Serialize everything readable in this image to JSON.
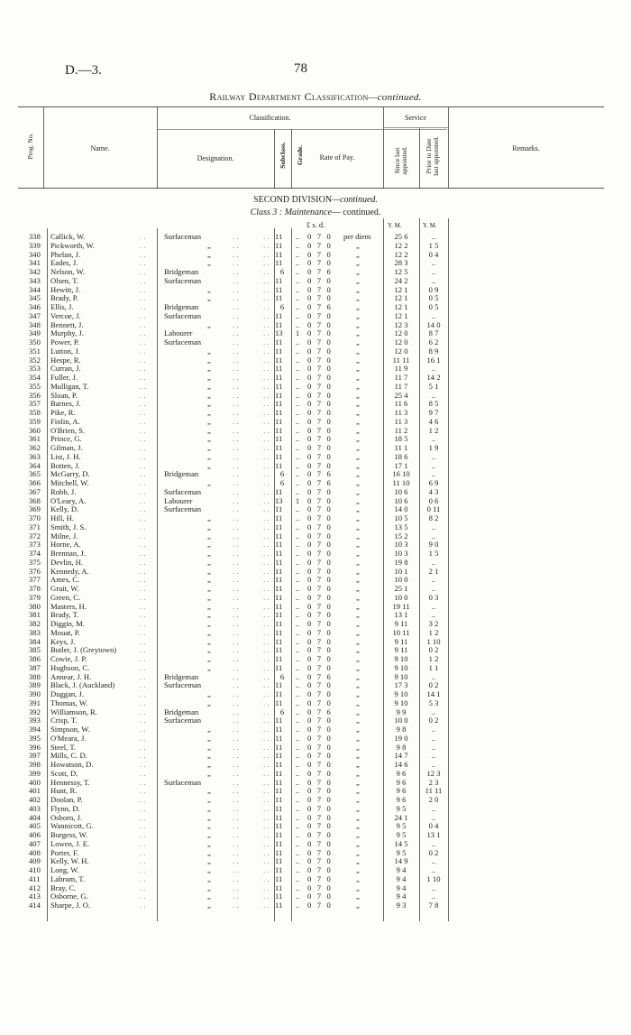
{
  "page_ref": "D.—3.",
  "page_number": "78",
  "title": {
    "main": "Railway Department Classification",
    "suffix": "—continued."
  },
  "headers": {
    "prog_no": "Prog. No.",
    "name": "Name.",
    "classification": "Classification.",
    "designation": "Designation.",
    "subclass": "Subclass.",
    "grade": "Grade.",
    "rate_of_pay": "Rate of Pay.",
    "service": "Service",
    "since_last": "Since last appointed.",
    "prior_to_date": "Prior to Date last appointed.",
    "remarks": "Remarks."
  },
  "division": {
    "title": "SECOND DIVISION",
    "title_suffix": "—continued.",
    "class_prefix": "Class 3 : ",
    "class_name": "Maintenance",
    "class_suffix": "— continued."
  },
  "units": {
    "pay": "£  s.  d.",
    "since": "Y.  M.",
    "prior": "Y.  M."
  },
  "per_diem": "per diem",
  "ditto": "„",
  "rows": [
    [
      "338",
      "Callick, W.",
      "Surfaceman",
      "11",
      "..",
      "0 7 0",
      "25 6",
      ".."
    ],
    [
      "339",
      "Pickworth, W.",
      "„",
      "11",
      "..",
      "0 7 0",
      "12 2",
      "1 5"
    ],
    [
      "340",
      "Phelan, J.",
      "„",
      "11",
      "..",
      "0 7 0",
      "12 2",
      "0 4"
    ],
    [
      "341",
      "Eades, J.",
      "„",
      "11",
      "..",
      "0 7 0",
      "28 3",
      ".."
    ],
    [
      "342",
      "Nelson, W.",
      "Bridgeman",
      "6",
      "..",
      "0 7 6",
      "12 5",
      ".."
    ],
    [
      "343",
      "Olsen, T.",
      "Surfaceman",
      "11",
      "..",
      "0 7 0",
      "24 2",
      ".."
    ],
    [
      "344",
      "Hewitt, J.",
      "„",
      "11",
      "..",
      "0 7 0",
      "12 1",
      "0 9"
    ],
    [
      "345",
      "Brady, P.",
      "„",
      "11",
      "..",
      "0 7 0",
      "12 1",
      "0 5"
    ],
    [
      "346",
      "Ellis, J.",
      "Bridgeman",
      "6",
      "..",
      "0 7 6",
      "12 1",
      "0 5"
    ],
    [
      "347",
      "Vercoe, J.",
      "Surfaceman",
      "11",
      "..",
      "0 7 0",
      "12 1",
      ".."
    ],
    [
      "348",
      "Bennett, J.",
      "„",
      "11",
      "..",
      "0 7 0",
      "12 3",
      "14 0"
    ],
    [
      "349",
      "Murphy, J.",
      "Labourer",
      "13",
      "1",
      "0 7 0",
      "12 0",
      "8 7"
    ],
    [
      "350",
      "Power, P.",
      "Surfaceman",
      "11",
      "..",
      "0 7 0",
      "12 0",
      "6 2"
    ],
    [
      "351",
      "Lutton, J.",
      "„",
      "11",
      "..",
      "0 7 0",
      "12 0",
      "8 9"
    ],
    [
      "352",
      "Hespe, R.",
      "„",
      "11",
      "..",
      "0 7 0",
      "11 11",
      "16 1"
    ],
    [
      "353",
      "Curran, J.",
      "„",
      "11",
      "..",
      "0 7 0",
      "11 9",
      ".."
    ],
    [
      "354",
      "Fuller, J.",
      "„",
      "11",
      "..",
      "0 7 0",
      "11 7",
      "14 2"
    ],
    [
      "355",
      "Mulligan, T.",
      "„",
      "11",
      "..",
      "0 7 0",
      "11 7",
      "5 1"
    ],
    [
      "356",
      "Sloan, P.",
      "„",
      "11",
      "..",
      "0 7 0",
      "25 4",
      ".."
    ],
    [
      "357",
      "Barnes, J.",
      "„",
      "11",
      "..",
      "0 7 0",
      "11 6",
      "8 5"
    ],
    [
      "358",
      "Pike, R.",
      "„",
      "11",
      "..",
      "0 7 0",
      "11 3",
      "9 7"
    ],
    [
      "359",
      "Finlin, A.",
      "„",
      "11",
      "..",
      "0 7 0",
      "11 3",
      "4 6"
    ],
    [
      "360",
      "O'Brien, S.",
      "„",
      "11",
      "..",
      "0 7 0",
      "11 2",
      "1 2"
    ],
    [
      "361",
      "Prince, G.",
      "„",
      "11",
      "..",
      "0 7 0",
      "18 5",
      ".."
    ],
    [
      "362",
      "Gilman, J.",
      "„",
      "11",
      "..",
      "0 7 0",
      "11 1",
      "1 9"
    ],
    [
      "363",
      "List, J. H.",
      "„",
      "11",
      "..",
      "0 7 0",
      "18 6",
      ".."
    ],
    [
      "364",
      "Botten, J.",
      "„",
      "11",
      "..",
      "0 7 0",
      "17 1",
      ".."
    ],
    [
      "365",
      "McGarry, D.",
      "Bridgeman",
      "6",
      "..",
      "0 7 6",
      "16 10",
      ".."
    ],
    [
      "366",
      "Mitchell, W.",
      "„",
      "6",
      "..",
      "0 7 6",
      "11 10",
      "6 9"
    ],
    [
      "367",
      "Robb, J.",
      "Surfaceman",
      "11",
      "..",
      "0 7 0",
      "10 6",
      "4 3"
    ],
    [
      "368",
      "O'Leary, A.",
      "Labourer",
      "13",
      "1",
      "0 7 0",
      "10 6",
      "0 6"
    ],
    [
      "369",
      "Kelly, D.",
      "Surfaceman",
      "11",
      "..",
      "0 7 0",
      "14 0",
      "0 11"
    ],
    [
      "370",
      "Hill, H.",
      "„",
      "11",
      "..",
      "0 7 0",
      "10 5",
      "8 2"
    ],
    [
      "371",
      "Smith, J. S.",
      "„",
      "11",
      "..",
      "0 7 0",
      "13 5",
      ".."
    ],
    [
      "372",
      "Milne, J.",
      "„",
      "11",
      "..",
      "0 7 0",
      "15 2",
      ".."
    ],
    [
      "373",
      "Horne, A.",
      "„",
      "11",
      "..",
      "0 7 0",
      "10 3",
      "9 0"
    ],
    [
      "374",
      "Brennan, J.",
      "„",
      "11",
      "..",
      "0 7 0",
      "10 3",
      "1 5"
    ],
    [
      "375",
      "Devlin, H.",
      "„",
      "11",
      "..",
      "0 7 0",
      "19 8",
      ".."
    ],
    [
      "376",
      "Kennedy, A.",
      "„",
      "11",
      "..",
      "0 7 0",
      "10 1",
      "2 1"
    ],
    [
      "377",
      "Ames, C.",
      "„",
      "11",
      "..",
      "0 7 0",
      "10 0",
      ".."
    ],
    [
      "378",
      "Gruit, W.",
      "„",
      "11",
      "..",
      "0 7 0",
      "25 1",
      ".."
    ],
    [
      "379",
      "Green, C.",
      "„",
      "11",
      "..",
      "0 7 0",
      "10 0",
      "0 3"
    ],
    [
      "380",
      "Masters, H.",
      "„",
      "11",
      "..",
      "0 7 0",
      "19 11",
      ".."
    ],
    [
      "381",
      "Brady, T.",
      "„",
      "11",
      "..",
      "0 7 0",
      "13 1",
      ".."
    ],
    [
      "382",
      "Diggin, M.",
      "„",
      "11",
      "..",
      "0 7 0",
      "9 11",
      "3 2"
    ],
    [
      "383",
      "Mouat, P.",
      "„",
      "11",
      "..",
      "0 7 0",
      "10 11",
      "1 2"
    ],
    [
      "384",
      "Keys, J.",
      "„",
      "11",
      "..",
      "0 7 0",
      "9 11",
      "1 10"
    ],
    [
      "385",
      "Butler, J. (Greytown)",
      "„",
      "11",
      "..",
      "0 7 0",
      "9 11",
      "0 2"
    ],
    [
      "386",
      "Cowie, J. P.",
      "„",
      "11",
      "..",
      "0 7 0",
      "9 10",
      "1 2"
    ],
    [
      "387",
      "Hughson, C.",
      "„",
      "11",
      "..",
      "0 7 0",
      "9 10",
      "1 1"
    ],
    [
      "388",
      "Annear, J. H.",
      "Bridgeman",
      "6",
      "..",
      "0 7 6",
      "9 10",
      ".."
    ],
    [
      "389",
      "Black, J. (Auckland)",
      "Surfaceman",
      "11",
      "..",
      "0 7 0",
      "17 3",
      "0 2"
    ],
    [
      "390",
      "Duggan, J.",
      "„",
      "11",
      "..",
      "0 7 0",
      "9 10",
      "14 1"
    ],
    [
      "391",
      "Thomas, W.",
      "„",
      "11",
      "..",
      "0 7 0",
      "9 10",
      "5 3"
    ],
    [
      "392",
      "Williamson, R.",
      "Bridgeman",
      "6",
      "..",
      "0 7 6",
      "9 9",
      ".."
    ],
    [
      "393",
      "Crisp, T.",
      "Surfaceman",
      "11",
      "..",
      "0 7 0",
      "10 0",
      "0 2"
    ],
    [
      "394",
      "Simpson, W.",
      "„",
      "11",
      "..",
      "0 7 0",
      "9 8",
      ".."
    ],
    [
      "395",
      "O'Meara, J.",
      "„",
      "11",
      "..",
      "0 7 0",
      "19 0",
      ".."
    ],
    [
      "396",
      "Steel, T.",
      "„",
      "11",
      "..",
      "0 7 0",
      "9 8",
      ".."
    ],
    [
      "397",
      "Mills, C. D.",
      "„",
      "11",
      "..",
      "0 7 0",
      "14 7",
      ".."
    ],
    [
      "398",
      "Howatson, D.",
      "„",
      "11",
      "..",
      "0 7 0",
      "14 6",
      ".."
    ],
    [
      "399",
      "Scott, D.",
      "„",
      "11",
      "..",
      "0 7 0",
      "9 6",
      "12 3"
    ],
    [
      "400",
      "Hennessy, T.",
      "Surfaceman",
      "11",
      "..",
      "0 7 0",
      "9 6",
      "2 3"
    ],
    [
      "401",
      "Hunt, R.",
      "„",
      "11",
      "..",
      "0 7 0",
      "9 6",
      "11 11"
    ],
    [
      "402",
      "Doolan, P.",
      "„",
      "11",
      "..",
      "0 7 0",
      "9 6",
      "2 0"
    ],
    [
      "403",
      "Flynn, D.",
      "„",
      "11",
      "..",
      "0 7 0",
      "9 5",
      ".."
    ],
    [
      "404",
      "Osborn, J.",
      "„",
      "11",
      "..",
      "0 7 0",
      "24 1",
      ".."
    ],
    [
      "405",
      "Wannicott, G.",
      "„",
      "11",
      "..",
      "0 7 0",
      "9 5",
      "0 4"
    ],
    [
      "406",
      "Burgess, W.",
      "„",
      "11",
      "..",
      "0 7 0",
      "9 5",
      "13 1"
    ],
    [
      "407",
      "Lowen, J. E.",
      "„",
      "11",
      "..",
      "0 7 0",
      "14 5",
      ".."
    ],
    [
      "408",
      "Porter, F.",
      "„",
      "11",
      "..",
      "0 7 0",
      "9 5",
      "0 2"
    ],
    [
      "409",
      "Kelly, W. H.",
      "„",
      "11",
      "..",
      "0 7 0",
      "14 9",
      ".."
    ],
    [
      "410",
      "Long, W.",
      "„",
      "11",
      "..",
      "0 7 0",
      "9 4",
      ".."
    ],
    [
      "411",
      "Labrum, T.",
      "„",
      "11",
      "..",
      "0 7 0",
      "9 4",
      "1 10"
    ],
    [
      "412",
      "Bray, C.",
      "„",
      "11",
      "..",
      "0 7 0",
      "9 4",
      ".."
    ],
    [
      "413",
      "Osborne, G.",
      "„",
      "11",
      "..",
      "0 7 0",
      "9 4",
      ".."
    ],
    [
      "414",
      "Sharpe, J. O.",
      "„",
      "11",
      "..",
      "0 7 0",
      "9 3",
      "7 8"
    ]
  ]
}
